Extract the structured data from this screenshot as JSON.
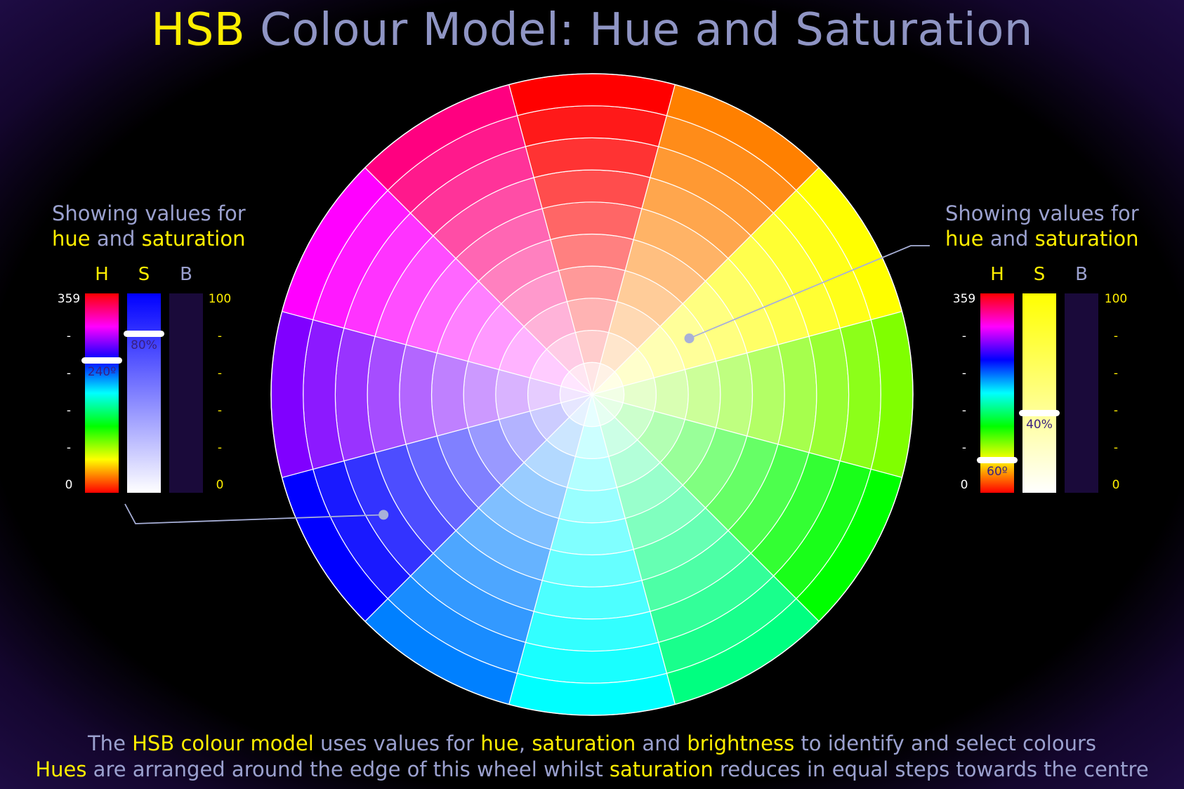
{
  "title": {
    "acronym": "HSB",
    "rest": "Colour Model: Hue and Saturation"
  },
  "captions": {
    "showing": "Showing values for",
    "hue": "hue",
    "and": "and",
    "saturation": "saturation"
  },
  "bar_labels": {
    "h": "H",
    "s": "S",
    "b": "B"
  },
  "scale": {
    "h_max": "359",
    "h_min": "0",
    "sb_max": "100",
    "sb_min": "0",
    "dash": "-"
  },
  "left_panel": {
    "hue_value": "240º",
    "hue_degrees": 240,
    "sat_value": "80%",
    "sat_fraction": 0.8,
    "bright_fraction": 0
  },
  "right_panel": {
    "hue_value": "60º",
    "hue_degrees": 60,
    "sat_value": "40%",
    "sat_fraction": 0.4,
    "bright_fraction": 0
  },
  "wheel": {
    "segments": 12,
    "rings": 10
  },
  "footer": {
    "line1": {
      "p1": "The ",
      "k1": "HSB colour model",
      "p2": " uses values for ",
      "k2": "hue",
      "p3": ", ",
      "k3": "saturation",
      "p4": " and ",
      "k4": "brightness",
      "p5": " to identify and select colours"
    },
    "line2": {
      "k1": "Hues",
      "p1": " are arranged around the edge of this wheel whilst ",
      "k2": "saturation",
      "p2": " reduces in equal steps towards the centre"
    }
  },
  "colors": {
    "accent": "#ffee00",
    "text": "#9ba1cf",
    "pointer": "#a8b0d8",
    "bar_dark": "#1a0a3a"
  }
}
